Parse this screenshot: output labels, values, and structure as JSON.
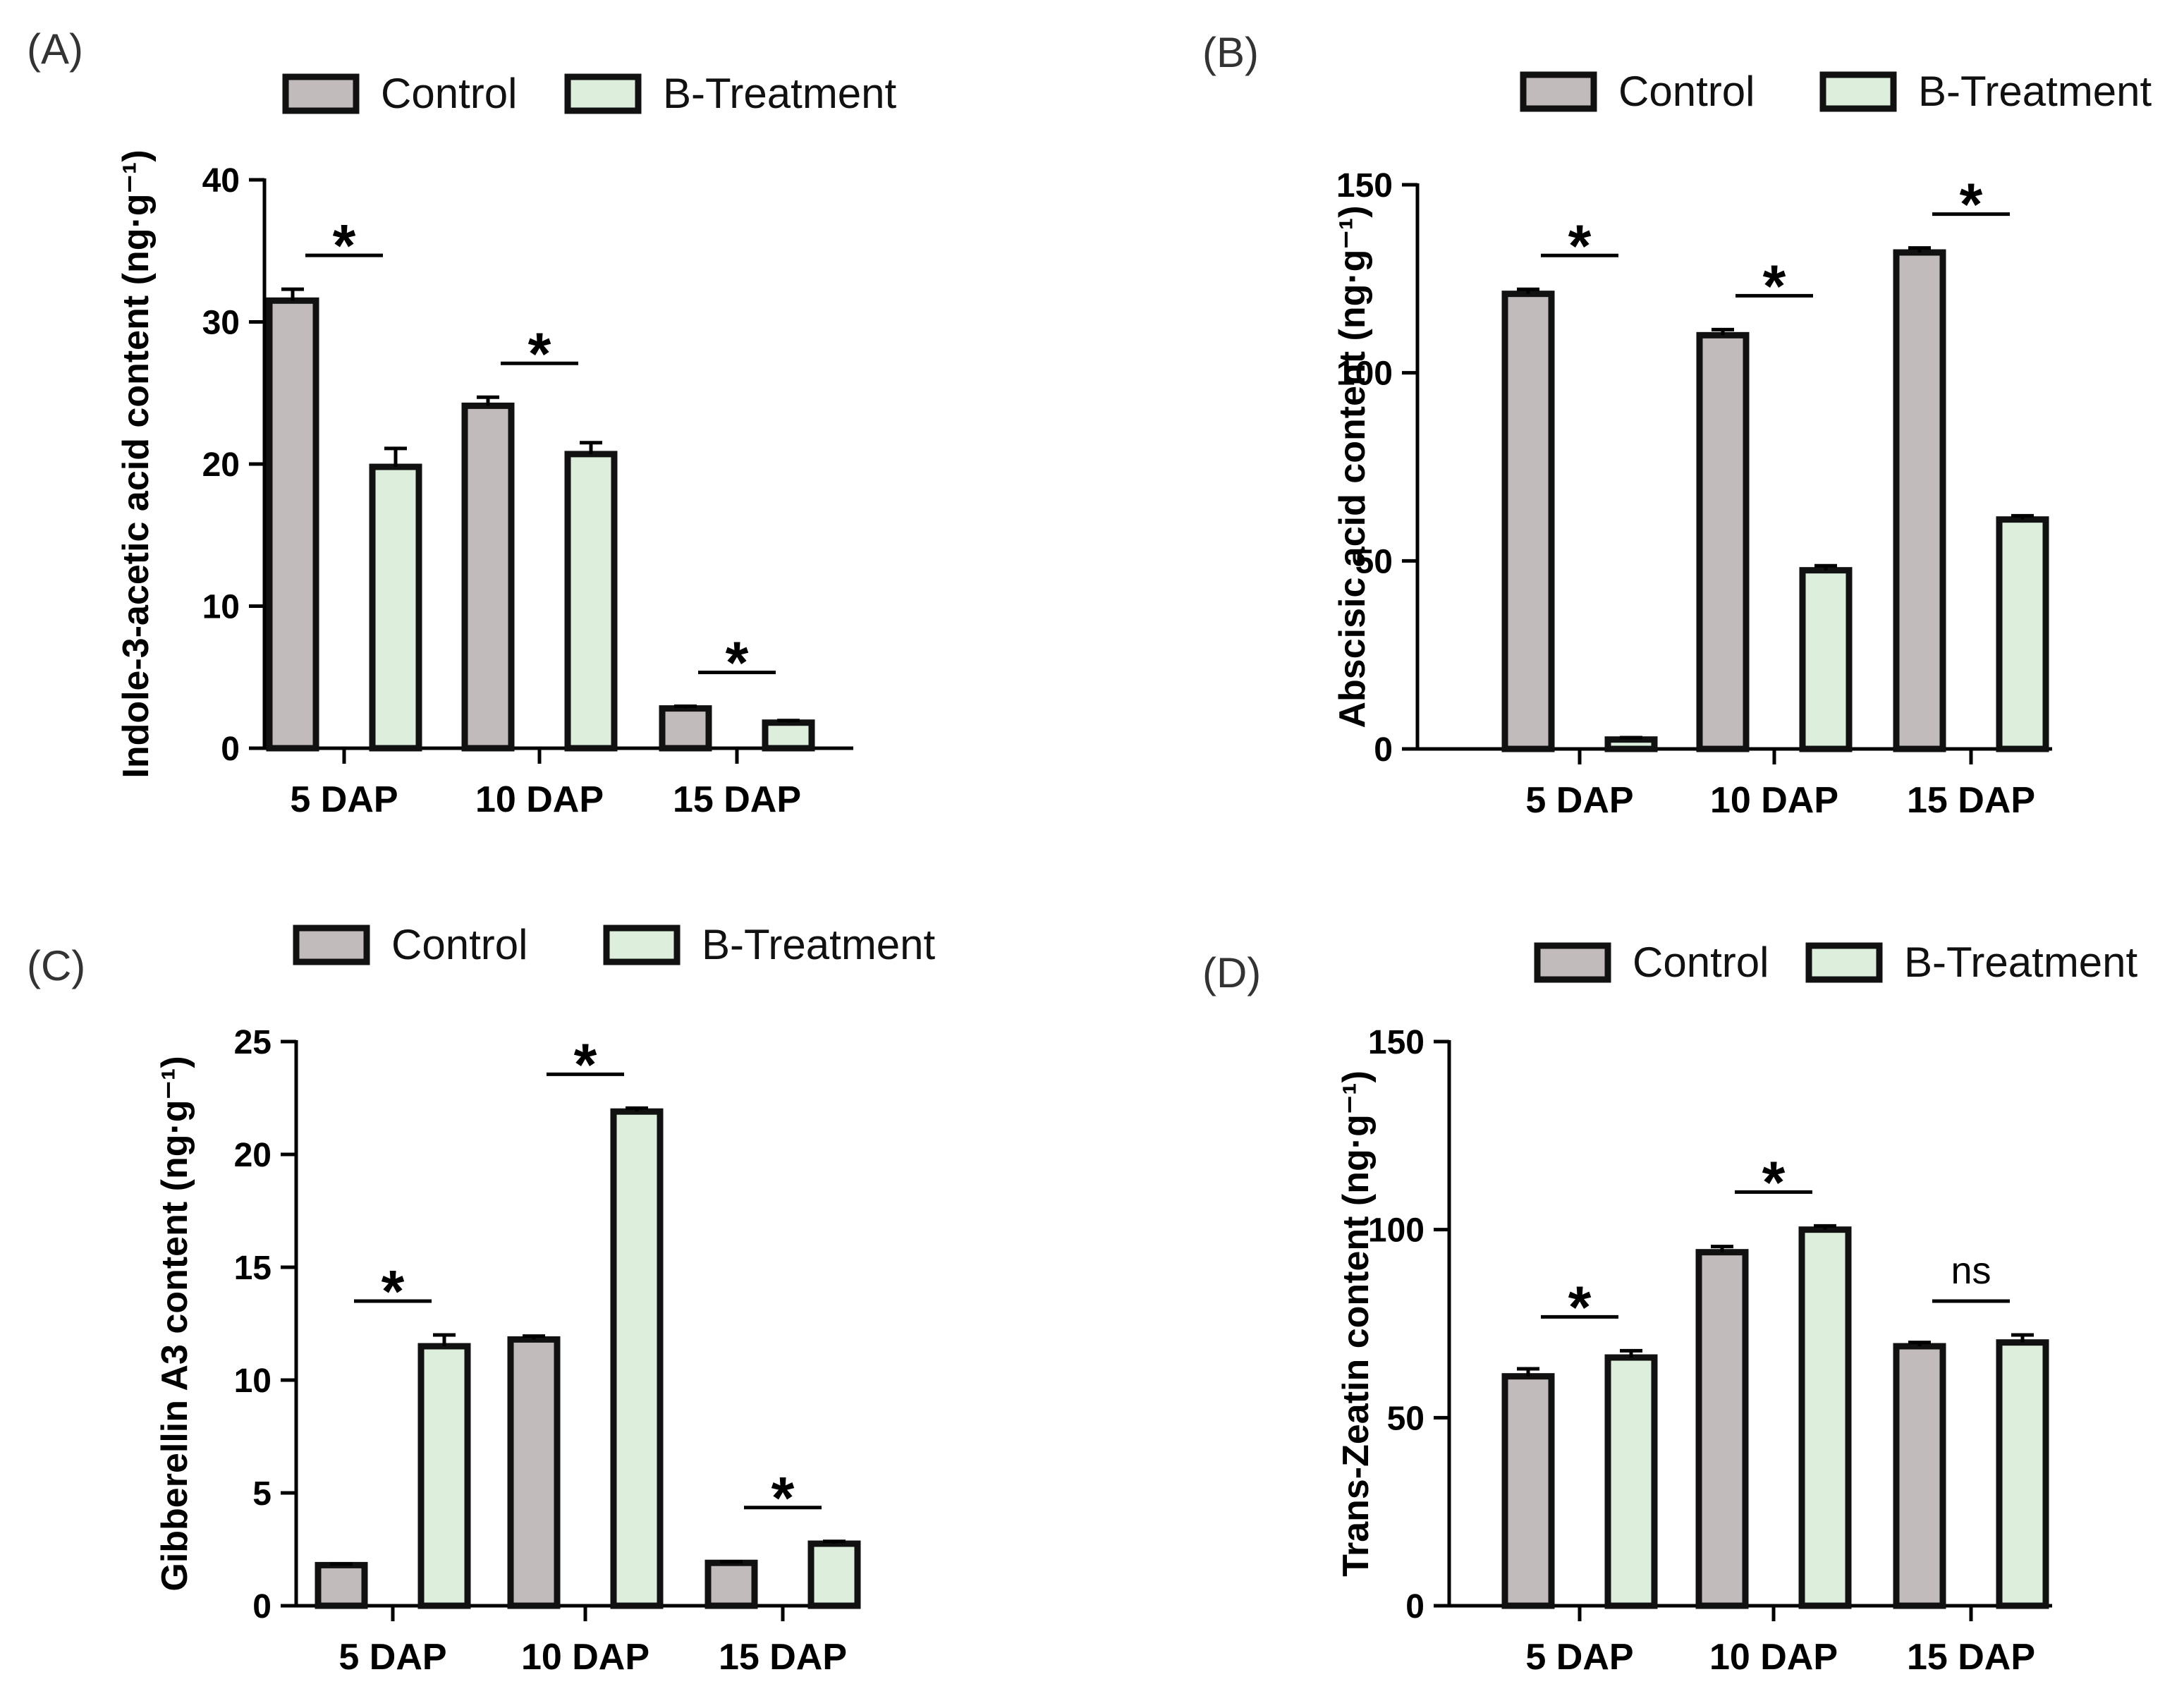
{
  "colors": {
    "control": "#c2bbbb",
    "treatment": "#ddeedd",
    "stroke": "#111111"
  },
  "legend": {
    "control": "Control",
    "treatment": "B-Treatment"
  },
  "chart_data": [
    {
      "panel": "(A)",
      "type": "bar",
      "categories": [
        "5 DAP",
        "10 DAP",
        "15 DAP"
      ],
      "series": [
        {
          "name": "Control",
          "values": [
            31.5,
            24.1,
            2.8
          ],
          "errors": [
            0.8,
            0.6,
            0.15
          ]
        },
        {
          "name": "B-Treatment",
          "values": [
            19.8,
            20.7,
            1.8
          ],
          "errors": [
            1.3,
            0.8,
            0.15
          ]
        }
      ],
      "ylabel": "Indole-3-acetic acid content (ng·g⁻¹)",
      "ylim": [
        0,
        40
      ],
      "yticks": [
        0,
        10,
        20,
        30,
        40
      ],
      "significance": [
        "*",
        "*",
        "*"
      ]
    },
    {
      "panel": "(B)",
      "type": "bar",
      "categories": [
        "5 DAP",
        "10 DAP",
        "15 DAP"
      ],
      "series": [
        {
          "name": "Control",
          "values": [
            121,
            110,
            132
          ],
          "errors": [
            1.2,
            1.5,
            1.2
          ]
        },
        {
          "name": "B-Treatment",
          "values": [
            2.5,
            47.5,
            61
          ],
          "errors": [
            0.5,
            1.2,
            1.0
          ]
        }
      ],
      "ylabel": "Abscisic acid content (ng·g⁻¹)",
      "ylim": [
        0,
        150
      ],
      "yticks": [
        0,
        50,
        100,
        150
      ],
      "significance": [
        "*",
        "*",
        "*"
      ]
    },
    {
      "panel": "(C)",
      "type": "bar",
      "categories": [
        "5 DAP",
        "10 DAP",
        "15 DAP"
      ],
      "series": [
        {
          "name": "Control",
          "values": [
            1.8,
            11.8,
            1.9
          ],
          "errors": [
            0.05,
            0.15,
            0.05
          ]
        },
        {
          "name": "B-Treatment",
          "values": [
            11.5,
            21.9,
            2.75
          ],
          "errors": [
            0.5,
            0.15,
            0.1
          ]
        }
      ],
      "ylabel": "Gibberellin A3 content (ng·g⁻¹)",
      "ylim": [
        0,
        25
      ],
      "yticks": [
        0,
        5,
        10,
        15,
        20,
        25
      ],
      "significance": [
        "*",
        "*",
        "*"
      ]
    },
    {
      "panel": "(D)",
      "type": "bar",
      "categories": [
        "5 DAP",
        "10 DAP",
        "15 DAP"
      ],
      "series": [
        {
          "name": "Control",
          "values": [
            61,
            94,
            69
          ],
          "errors": [
            2.0,
            1.5,
            1.0
          ]
        },
        {
          "name": "B-Treatment",
          "values": [
            66,
            100,
            70
          ],
          "errors": [
            1.8,
            1.0,
            2.0
          ]
        }
      ],
      "ylabel": "Trans-Zeatin content (ng·g⁻¹)",
      "ylim": [
        0,
        150
      ],
      "yticks": [
        0,
        50,
        100,
        150
      ],
      "significance": [
        "*",
        "*",
        "ns"
      ]
    }
  ]
}
